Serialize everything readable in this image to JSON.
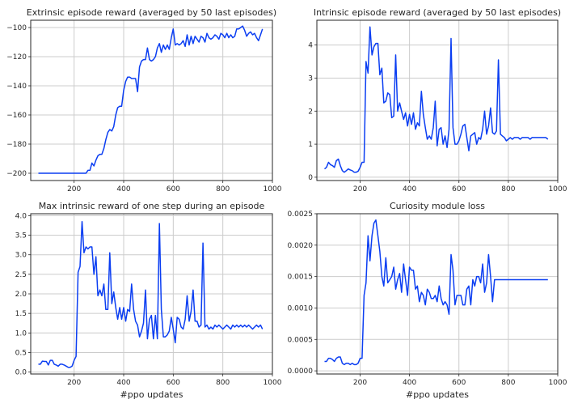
{
  "chart_data": [
    {
      "type": "line",
      "title": "Extrinsic episode reward (averaged by 50 last episodes)",
      "xlabel": "",
      "xlim": [
        25,
        1000
      ],
      "ylim": [
        -205,
        -95
      ],
      "xticks": [
        200,
        400,
        600,
        800,
        1000
      ],
      "yticks": [
        -200,
        -180,
        -160,
        -140,
        -120,
        -100
      ],
      "ytick_labels": [
        "−200",
        "−180",
        "−160",
        "−140",
        "−120",
        "−100"
      ],
      "grid": true,
      "color": "#0b3ef2",
      "series": [
        {
          "x": [
            56,
            72,
            88,
            104,
            120,
            136,
            152,
            168,
            184,
            200,
            216,
            232,
            248,
            256,
            264,
            272,
            280,
            288,
            296,
            304,
            312,
            320,
            328,
            336,
            344,
            352,
            360,
            368,
            376,
            384,
            392,
            400,
            408,
            416,
            424,
            432,
            440,
            448,
            456,
            464,
            472,
            480,
            488,
            496,
            504,
            512,
            520,
            528,
            536,
            544,
            552,
            560,
            568,
            576,
            584,
            592,
            600,
            608,
            616,
            624,
            632,
            640,
            648,
            656,
            664,
            672,
            680,
            688,
            696,
            704,
            712,
            720,
            728,
            736,
            744,
            752,
            760,
            768,
            776,
            784,
            792,
            800,
            808,
            816,
            824,
            832,
            840,
            848,
            856,
            864,
            872,
            880,
            888,
            896,
            904,
            912,
            920,
            928,
            936,
            944,
            952,
            960
          ],
          "values": [
            -200,
            -200,
            -200,
            -200,
            -200,
            -200,
            -200,
            -200,
            -200,
            -200,
            -200,
            -200,
            -200,
            -198,
            -198,
            -193,
            -195,
            -191,
            -188,
            -187,
            -187,
            -183,
            -177,
            -172,
            -170,
            -171,
            -168,
            -160,
            -155,
            -154,
            -154,
            -143,
            -137,
            -134,
            -134,
            -135,
            -135,
            -135,
            -144,
            -127,
            -123,
            -122,
            -122,
            -114,
            -122,
            -123,
            -122,
            -120,
            -114,
            -111,
            -117,
            -112,
            -115,
            -112,
            -115,
            -107,
            -101,
            -112,
            -111,
            -112,
            -111,
            -109,
            -113,
            -105,
            -112,
            -106,
            -111,
            -106,
            -108,
            -110,
            -106,
            -107,
            -110,
            -104,
            -107,
            -108,
            -107,
            -105,
            -106,
            -108,
            -104,
            -105,
            -107,
            -104,
            -107,
            -105,
            -107,
            -106,
            -101,
            -101,
            -100,
            -99,
            -102,
            -106,
            -104,
            -103,
            -105,
            -104,
            -107,
            -109,
            -105,
            -101
          ]
        }
      ]
    },
    {
      "type": "line",
      "title": "Intrinsic episode reward (averaged by 50 last episodes)",
      "xlabel": "",
      "xlim": [
        25,
        1000
      ],
      "ylim": [
        -0.1,
        4.75
      ],
      "xticks": [
        200,
        400,
        600,
        800,
        1000
      ],
      "yticks": [
        0,
        1,
        2,
        3,
        4
      ],
      "ytick_labels": [
        "0",
        "1",
        "2",
        "3",
        "4"
      ],
      "grid": true,
      "color": "#0b3ef2",
      "series": [
        {
          "x": [
            56,
            64,
            72,
            80,
            88,
            96,
            104,
            112,
            120,
            128,
            136,
            144,
            152,
            160,
            168,
            176,
            184,
            192,
            200,
            208,
            216,
            224,
            232,
            240,
            248,
            256,
            264,
            272,
            280,
            288,
            296,
            304,
            312,
            320,
            328,
            336,
            344,
            352,
            360,
            368,
            376,
            384,
            392,
            400,
            408,
            416,
            424,
            432,
            440,
            448,
            456,
            464,
            472,
            480,
            488,
            496,
            504,
            512,
            520,
            528,
            536,
            544,
            552,
            560,
            568,
            576,
            584,
            592,
            600,
            608,
            616,
            624,
            632,
            640,
            648,
            656,
            664,
            672,
            680,
            688,
            696,
            704,
            712,
            720,
            728,
            736,
            744,
            752,
            760,
            768,
            776,
            784,
            792,
            800,
            808,
            816,
            824,
            832,
            840,
            848,
            856,
            864,
            872,
            880,
            888,
            896,
            904,
            912,
            920,
            928,
            936,
            944,
            952,
            960
          ],
          "values": [
            0.25,
            0.3,
            0.45,
            0.38,
            0.35,
            0.3,
            0.5,
            0.55,
            0.35,
            0.2,
            0.15,
            0.2,
            0.25,
            0.22,
            0.2,
            0.15,
            0.15,
            0.18,
            0.3,
            0.45,
            0.45,
            3.5,
            3.15,
            4.55,
            3.7,
            3.95,
            4.05,
            4.05,
            3.1,
            3.3,
            2.25,
            2.3,
            2.55,
            2.5,
            1.8,
            1.85,
            3.7,
            2.0,
            2.25,
            2.0,
            1.75,
            1.95,
            1.55,
            1.9,
            1.6,
            1.95,
            1.45,
            1.65,
            1.55,
            2.6,
            1.9,
            1.5,
            1.15,
            1.25,
            1.15,
            1.5,
            2.3,
            0.95,
            1.45,
            1.5,
            1.0,
            1.25,
            0.9,
            1.45,
            4.2,
            1.5,
            1.0,
            1.0,
            1.1,
            1.3,
            1.55,
            1.6,
            1.2,
            0.8,
            1.25,
            1.3,
            1.35,
            1.0,
            1.2,
            1.15,
            1.45,
            2.0,
            1.3,
            1.55,
            2.1,
            1.35,
            1.3,
            1.4,
            3.55,
            1.3,
            1.25,
            1.2,
            1.1,
            1.15,
            1.2,
            1.15,
            1.2,
            1.2,
            1.2,
            1.15,
            1.2,
            1.2,
            1.2,
            1.2,
            1.15,
            1.2,
            1.2,
            1.2,
            1.2,
            1.2,
            1.2,
            1.2,
            1.2,
            1.15
          ]
        }
      ]
    },
    {
      "type": "line",
      "title": "Max intrinsic reward of one step during an episode",
      "xlabel": "#ppo updates",
      "xlim": [
        25,
        1000
      ],
      "ylim": [
        -0.05,
        4.05
      ],
      "xticks": [
        200,
        400,
        600,
        800,
        1000
      ],
      "yticks": [
        0.0,
        0.5,
        1.0,
        1.5,
        2.0,
        2.5,
        3.0,
        3.5,
        4.0
      ],
      "ytick_labels": [
        "0.0",
        "0.5",
        "1.0",
        "1.5",
        "2.0",
        "2.5",
        "3.0",
        "3.5",
        "4.0"
      ],
      "grid": true,
      "color": "#0b3ef2",
      "series": [
        {
          "x": [
            56,
            64,
            72,
            80,
            88,
            96,
            104,
            112,
            120,
            128,
            136,
            144,
            152,
            160,
            168,
            176,
            184,
            192,
            200,
            208,
            216,
            224,
            232,
            240,
            248,
            256,
            264,
            272,
            280,
            288,
            296,
            304,
            312,
            320,
            328,
            336,
            344,
            352,
            360,
            368,
            376,
            384,
            392,
            400,
            408,
            416,
            424,
            432,
            440,
            448,
            456,
            464,
            472,
            480,
            488,
            496,
            504,
            512,
            520,
            528,
            536,
            544,
            552,
            560,
            568,
            576,
            584,
            592,
            600,
            608,
            616,
            624,
            632,
            640,
            648,
            656,
            664,
            672,
            680,
            688,
            696,
            704,
            712,
            720,
            728,
            736,
            744,
            752,
            760,
            768,
            776,
            784,
            792,
            800,
            808,
            816,
            824,
            832,
            840,
            848,
            856,
            864,
            872,
            880,
            888,
            896,
            904,
            912,
            920,
            928,
            936,
            944,
            952,
            960
          ],
          "values": [
            0.2,
            0.2,
            0.28,
            0.27,
            0.27,
            0.18,
            0.3,
            0.3,
            0.2,
            0.18,
            0.15,
            0.2,
            0.2,
            0.18,
            0.15,
            0.12,
            0.12,
            0.15,
            0.3,
            0.4,
            2.55,
            2.7,
            3.85,
            3.05,
            3.2,
            3.15,
            3.2,
            3.2,
            2.5,
            2.95,
            1.95,
            2.1,
            1.95,
            2.25,
            1.6,
            1.6,
            3.05,
            1.75,
            2.05,
            1.65,
            1.35,
            1.65,
            1.35,
            1.65,
            1.3,
            1.6,
            1.55,
            2.25,
            1.6,
            1.3,
            1.2,
            0.9,
            1.05,
            1.25,
            2.1,
            0.85,
            1.35,
            1.45,
            0.85,
            1.45,
            0.85,
            3.8,
            1.6,
            0.9,
            0.9,
            0.95,
            1.05,
            1.4,
            1.1,
            0.75,
            1.4,
            1.35,
            1.15,
            1.1,
            1.35,
            1.95,
            1.3,
            1.55,
            2.1,
            1.3,
            1.3,
            1.15,
            1.2,
            3.3,
            1.15,
            1.2,
            1.1,
            1.15,
            1.1,
            1.2,
            1.15,
            1.2,
            1.15,
            1.1,
            1.15,
            1.2,
            1.15,
            1.1,
            1.2,
            1.15,
            1.2,
            1.15,
            1.2,
            1.15,
            1.2,
            1.15,
            1.2,
            1.15,
            1.1,
            1.15,
            1.2,
            1.15,
            1.2,
            1.1
          ]
        }
      ]
    },
    {
      "type": "line",
      "title": "Curiosity module loss",
      "xlabel": "#ppo updates",
      "xlim": [
        25,
        1000
      ],
      "ylim": [
        -5e-05,
        0.0025
      ],
      "xticks": [
        200,
        400,
        600,
        800,
        1000
      ],
      "yticks": [
        0.0,
        0.0005,
        0.001,
        0.0015,
        0.002,
        0.0025
      ],
      "ytick_labels": [
        "0.0000",
        "0.0005",
        "0.0010",
        "0.0015",
        "0.0020",
        "0.0025"
      ],
      "grid": true,
      "color": "#0b3ef2",
      "series": [
        {
          "x": [
            56,
            64,
            72,
            80,
            88,
            96,
            104,
            112,
            120,
            128,
            136,
            144,
            152,
            160,
            168,
            176,
            184,
            192,
            200,
            208,
            216,
            224,
            232,
            240,
            248,
            256,
            264,
            272,
            280,
            288,
            296,
            304,
            312,
            320,
            328,
            336,
            344,
            352,
            360,
            368,
            376,
            384,
            392,
            400,
            408,
            416,
            424,
            432,
            440,
            448,
            456,
            464,
            472,
            480,
            488,
            496,
            504,
            512,
            520,
            528,
            536,
            544,
            552,
            560,
            568,
            576,
            584,
            592,
            600,
            608,
            616,
            624,
            632,
            640,
            648,
            656,
            664,
            672,
            680,
            688,
            696,
            704,
            712,
            720,
            728,
            736,
            744,
            752,
            760,
            768,
            776,
            784,
            792,
            800,
            808,
            816,
            824,
            832,
            840,
            848,
            856,
            864,
            872,
            880,
            888,
            896,
            904,
            912,
            920,
            928,
            936,
            944,
            952,
            960
          ],
          "values": [
            0.00015,
            0.00015,
            0.0002,
            0.0002,
            0.00018,
            0.00015,
            0.0002,
            0.00022,
            0.00022,
            0.00012,
            0.0001,
            0.00012,
            0.00012,
            0.0001,
            0.00012,
            0.0001,
            0.0001,
            0.00012,
            0.0002,
            0.0002,
            0.0012,
            0.0014,
            0.00215,
            0.00175,
            0.00215,
            0.00235,
            0.0024,
            0.00215,
            0.0019,
            0.0015,
            0.00135,
            0.0018,
            0.0014,
            0.00145,
            0.0015,
            0.00165,
            0.0013,
            0.00145,
            0.00155,
            0.00125,
            0.0017,
            0.00145,
            0.0012,
            0.00165,
            0.0016,
            0.0016,
            0.0013,
            0.00135,
            0.0011,
            0.00125,
            0.0012,
            0.00105,
            0.0013,
            0.00125,
            0.00115,
            0.00115,
            0.0012,
            0.0011,
            0.00135,
            0.00115,
            0.00105,
            0.0011,
            0.00105,
            0.0009,
            0.00185,
            0.0016,
            0.00105,
            0.0012,
            0.0012,
            0.0012,
            0.00105,
            0.00105,
            0.0013,
            0.00135,
            0.00105,
            0.00145,
            0.00135,
            0.0015,
            0.0015,
            0.0014,
            0.0017,
            0.00125,
            0.0014,
            0.00185,
            0.0015,
            0.0011,
            0.00145,
            0.00145,
            0.00145,
            0.00145,
            0.00145,
            0.00145,
            0.00145,
            0.00145,
            0.00145,
            0.00145,
            0.00145,
            0.00145,
            0.00145,
            0.00145,
            0.00145,
            0.00145,
            0.00145,
            0.00145,
            0.00145,
            0.00145,
            0.00145,
            0.00145,
            0.00145,
            0.00145,
            0.00145,
            0.00145,
            0.00145,
            0.00145
          ]
        }
      ]
    }
  ]
}
